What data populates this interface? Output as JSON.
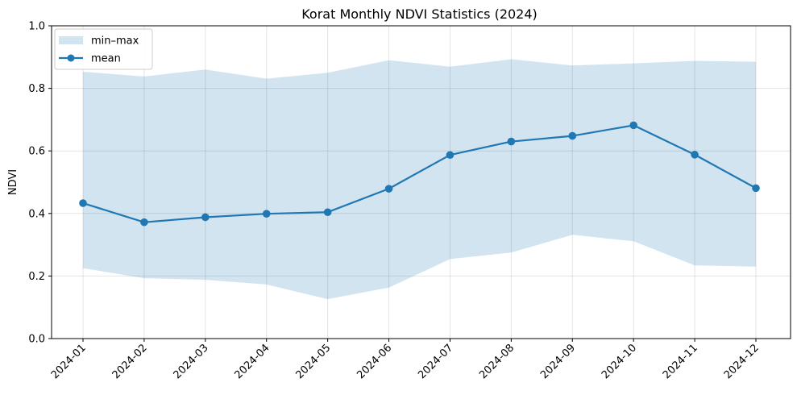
{
  "chart_data": {
    "type": "area",
    "title": "Korat Monthly NDVI Statistics (2024)",
    "xlabel": "",
    "ylabel": "NDVI",
    "ylim": [
      0,
      1
    ],
    "yticks": [
      "0.0",
      "0.2",
      "0.4",
      "0.6",
      "0.8",
      "1.0"
    ],
    "categories": [
      "2024-01",
      "2024-02",
      "2024-03",
      "2024-04",
      "2024-05",
      "2024-06",
      "2024-07",
      "2024-08",
      "2024-09",
      "2024-10",
      "2024-11",
      "2024-12"
    ],
    "series": [
      {
        "name": "min–max",
        "kind": "band",
        "min": [
          0.225,
          0.193,
          0.188,
          0.173,
          0.126,
          0.163,
          0.254,
          0.275,
          0.332,
          0.311,
          0.234,
          0.23
        ],
        "max": [
          0.853,
          0.838,
          0.86,
          0.831,
          0.85,
          0.89,
          0.869,
          0.893,
          0.873,
          0.88,
          0.888,
          0.885
        ],
        "color": "#1f77b4",
        "opacity": 0.2
      },
      {
        "name": "mean",
        "kind": "line",
        "values": [
          0.433,
          0.372,
          0.388,
          0.399,
          0.404,
          0.479,
          0.587,
          0.63,
          0.648,
          0.682,
          0.588,
          0.481
        ],
        "color": "#1f77b4"
      }
    ],
    "grid": true,
    "legend": "top-left"
  }
}
